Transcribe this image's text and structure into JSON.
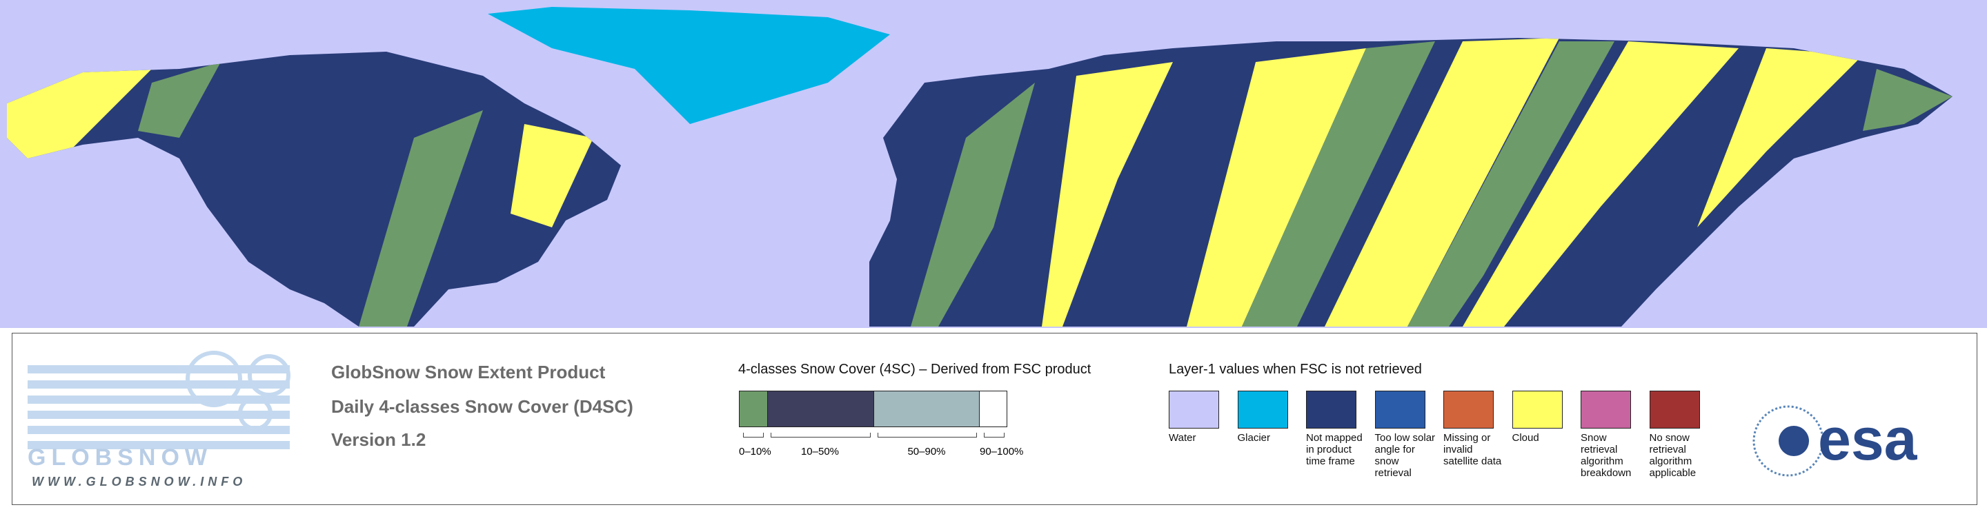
{
  "branding": {
    "logo_text": "GLOBSNOW",
    "url": "WWW.GLOBSNOW.INFO",
    "agency": "esa"
  },
  "product": {
    "title": "GlobSnow Snow Extent Product",
    "subtitle": "Daily 4-classes Snow Cover (D4SC)",
    "version": "Version 1.2"
  },
  "snow_cover_legend": {
    "title": "4-classes Snow Cover (4SC) – Derived from FSC product",
    "classes": [
      {
        "label": "0–10%",
        "color": "#6e9b6a"
      },
      {
        "label": "10–50%",
        "color": "#3e3e5e"
      },
      {
        "label": "50–90%",
        "color": "#a2b9be"
      },
      {
        "label": "90–100%",
        "color": "#ffffff"
      }
    ]
  },
  "layer1_legend": {
    "title": "Layer-1 values when FSC is not retrieved",
    "items": [
      {
        "label": "Water",
        "color": "#c8c8fa"
      },
      {
        "label": "Glacier",
        "color": "#00b4e6"
      },
      {
        "label": "Not mapped in product time frame",
        "color": "#283c78"
      },
      {
        "label": "Too low solar angle for snow retrieval",
        "color": "#2a5caa"
      },
      {
        "label": "Missing or invalid satellite data",
        "color": "#d2643c"
      },
      {
        "label": "Cloud",
        "color": "#ffff64"
      },
      {
        "label": "Snow retrieval algorithm breakdown",
        "color": "#c864a0"
      },
      {
        "label": "No snow retrieval algorithm applicable",
        "color": "#a03232"
      }
    ]
  }
}
